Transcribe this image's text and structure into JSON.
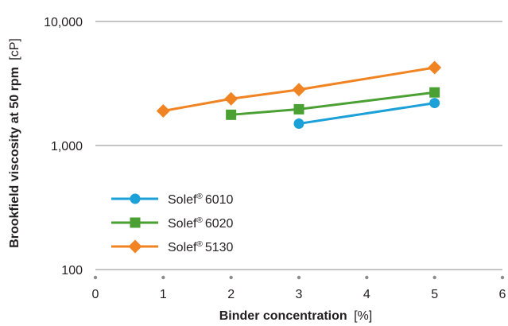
{
  "chart_data": {
    "type": "line",
    "xlabel": "Binder concentration",
    "xlabel_unit": "[%]",
    "ylabel": "Brookfield viscosity at 50 rpm",
    "ylabel_unit": "[cP]",
    "y_scale": "log",
    "xlim": [
      0,
      6
    ],
    "ylim": [
      100,
      10000
    ],
    "x_ticks": [
      "0",
      "1",
      "2",
      "3",
      "4",
      "5",
      "6"
    ],
    "y_ticks": [
      {
        "value": 10000,
        "label": "10,000"
      },
      {
        "value": 1000,
        "label": "1,000"
      },
      {
        "value": 100,
        "label": "100"
      }
    ],
    "grid": "horizontal at y ticks",
    "legend_position": "lower-left",
    "series": [
      {
        "name": "Solef",
        "name_suffix": "6010",
        "marker": "circle",
        "color": "#1ba0d8",
        "points": [
          {
            "x": 3,
            "y": 1500
          },
          {
            "x": 5,
            "y": 2200
          }
        ]
      },
      {
        "name": "Solef",
        "name_suffix": "6020",
        "marker": "square",
        "color": "#4aa032",
        "points": [
          {
            "x": 2,
            "y": 1770
          },
          {
            "x": 3,
            "y": 1960
          },
          {
            "x": 5,
            "y": 2680
          }
        ]
      },
      {
        "name": "Solef",
        "name_suffix": "5130",
        "marker": "diamond",
        "color": "#f18422",
        "points": [
          {
            "x": 1,
            "y": 1900
          },
          {
            "x": 2,
            "y": 2380
          },
          {
            "x": 3,
            "y": 2820
          },
          {
            "x": 5,
            "y": 4250
          }
        ]
      }
    ]
  }
}
